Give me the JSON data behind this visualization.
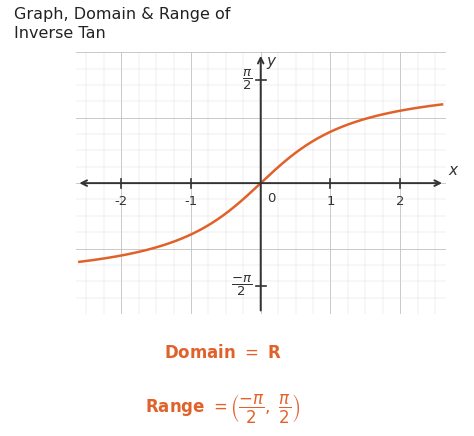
{
  "title_line1": "Graph, Domain & Range of",
  "title_line2": "Inverse Tan",
  "title_fontsize": 11.5,
  "title_color": "#222222",
  "curve_color": "#e0622a",
  "curve_linewidth": 1.8,
  "xlim": [
    -2.65,
    2.65
  ],
  "ylim": [
    -2.0,
    2.0
  ],
  "xticks": [
    -2,
    -1,
    1,
    2
  ],
  "bg_color": "#ffffff",
  "plot_bg_color": "#f5f5f5",
  "grid_color_minor": "#dddddd",
  "grid_color_major": "#c0c0c0",
  "axis_color": "#333333",
  "orange_color": "#e0622a",
  "xlabel": "x",
  "ylabel": "y",
  "domain_text": "Domain = R",
  "range_text": "Range = $\\left(\\dfrac{-\\pi}{2},\\ \\dfrac{\\pi}{2}\\right)$"
}
